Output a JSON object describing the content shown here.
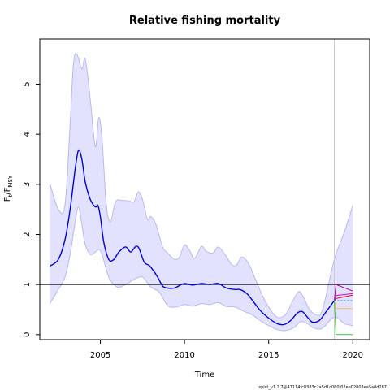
{
  "chart_data": {
    "type": "line",
    "title": "Relative fishing mortality",
    "xlabel": "Time",
    "ylabel": {
      "main": "F",
      "sub_t": "t",
      "slash": "/F",
      "sub_msy": "MSY"
    },
    "xlim": [
      2001.4,
      2021.0
    ],
    "ylim": [
      -0.1,
      5.9
    ],
    "x_ticks": [
      2005,
      2010,
      2015,
      2020
    ],
    "y_ticks": [
      0,
      1,
      2,
      3,
      4,
      5
    ],
    "reference_line": {
      "y": 1.0,
      "color": "#000000"
    },
    "forecast_start": 2018.9,
    "footer": "spict_v1.2.7@47114fc8383c2a5d1c080f02ee02803ea5a0d287",
    "colors": {
      "estimate": "#0000dd",
      "band_fill": "#e2e2ff",
      "band_edge": "#b8b8ee",
      "vline": "#cccccc"
    },
    "series": [
      {
        "name": "",
        "role": "estimate",
        "color": "#0000dd",
        "x": [
          2002.0,
          2002.5,
          2002.9,
          2003.2,
          2003.5,
          2003.7,
          2003.9,
          2004.1,
          2004.4,
          2004.7,
          2004.85,
          2005.0,
          2005.2,
          2005.5,
          2005.8,
          2006.1,
          2006.5,
          2006.8,
          2007.1,
          2007.3,
          2007.6,
          2007.9,
          2008.1,
          2008.4,
          2008.7,
          2009.0,
          2009.4,
          2009.7,
          2010.0,
          2010.5,
          2011.0,
          2011.5,
          2012.0,
          2012.5,
          2013.0,
          2013.3,
          2013.7,
          2014.0,
          2014.5,
          2015.0,
          2015.5,
          2015.9,
          2016.3,
          2016.7,
          2017.0,
          2017.3,
          2017.6,
          2018.0,
          2018.4,
          2018.9
        ],
        "y": [
          1.37,
          1.5,
          1.9,
          2.5,
          3.3,
          3.68,
          3.5,
          3.05,
          2.7,
          2.55,
          2.58,
          2.35,
          1.85,
          1.5,
          1.5,
          1.65,
          1.75,
          1.65,
          1.76,
          1.72,
          1.45,
          1.38,
          1.3,
          1.15,
          0.97,
          0.93,
          0.93,
          0.98,
          1.02,
          0.99,
          1.02,
          1.0,
          1.02,
          0.93,
          0.9,
          0.9,
          0.82,
          0.7,
          0.48,
          0.33,
          0.22,
          0.2,
          0.28,
          0.43,
          0.46,
          0.35,
          0.25,
          0.28,
          0.45,
          0.68
        ]
      },
      {
        "name": "",
        "role": "band_upper",
        "color": "#b8b8ee",
        "x": [
          2002.0,
          2002.5,
          2002.9,
          2003.2,
          2003.4,
          2003.6,
          2003.9,
          2004.1,
          2004.4,
          2004.7,
          2004.9,
          2005.1,
          2005.35,
          2005.6,
          2005.9,
          2006.3,
          2006.7,
          2007.0,
          2007.25,
          2007.5,
          2007.8,
          2008.0,
          2008.3,
          2008.7,
          2009.0,
          2009.4,
          2009.7,
          2010.0,
          2010.3,
          2010.6,
          2011.0,
          2011.3,
          2011.7,
          2012.0,
          2012.4,
          2012.8,
          2013.1,
          2013.4,
          2013.8,
          2014.2,
          2014.6,
          2015.0,
          2015.5,
          2016.0,
          2016.4,
          2016.8,
          2017.1,
          2017.4,
          2017.8,
          2018.2,
          2018.9,
          2019.5,
          2020.0
        ],
        "y": [
          3.02,
          2.5,
          2.6,
          4.2,
          5.4,
          5.6,
          5.3,
          5.5,
          4.7,
          3.75,
          4.33,
          3.9,
          2.6,
          2.25,
          2.65,
          2.68,
          2.67,
          2.65,
          2.85,
          2.7,
          2.3,
          2.36,
          2.2,
          1.75,
          1.63,
          1.5,
          1.55,
          1.79,
          1.68,
          1.52,
          1.76,
          1.66,
          1.63,
          1.75,
          1.6,
          1.4,
          1.39,
          1.55,
          1.42,
          1.12,
          0.8,
          0.55,
          0.35,
          0.4,
          0.65,
          0.86,
          0.72,
          0.52,
          0.4,
          0.5,
          1.5,
          2.05,
          2.58
        ]
      },
      {
        "name": "",
        "role": "band_lower",
        "color": "#b8b8ee",
        "x": [
          2002.0,
          2002.5,
          2002.9,
          2003.2,
          2003.5,
          2003.7,
          2003.9,
          2004.1,
          2004.4,
          2004.7,
          2004.9,
          2005.1,
          2005.5,
          2006.0,
          2006.5,
          2007.0,
          2007.5,
          2008.0,
          2008.5,
          2009.0,
          2009.5,
          2010.0,
          2010.5,
          2011.0,
          2011.5,
          2012.0,
          2012.5,
          2013.0,
          2013.5,
          2014.0,
          2014.5,
          2015.0,
          2015.5,
          2016.0,
          2016.5,
          2016.9,
          2017.3,
          2017.7,
          2018.2,
          2018.9,
          2019.5,
          2020.0
        ],
        "y": [
          0.62,
          0.9,
          1.15,
          1.6,
          2.25,
          2.55,
          2.2,
          1.8,
          1.6,
          1.65,
          1.7,
          1.6,
          1.15,
          0.95,
          1.0,
          1.1,
          1.15,
          0.95,
          0.85,
          0.58,
          0.55,
          0.6,
          0.57,
          0.62,
          0.6,
          0.64,
          0.56,
          0.55,
          0.47,
          0.4,
          0.28,
          0.18,
          0.1,
          0.08,
          0.14,
          0.26,
          0.22,
          0.13,
          0.13,
          0.35,
          0.22,
          0.18
        ]
      },
      {
        "name": "",
        "role": "forecast",
        "color": "#990099",
        "dash": "none",
        "x": [
          2018.9,
          2019.0,
          2020.0
        ],
        "y": [
          0.68,
          1.0,
          0.87
        ]
      },
      {
        "name": "",
        "role": "forecast",
        "color": "#ee0000",
        "dash": "none",
        "x": [
          2018.9,
          2019.0,
          2020.0
        ],
        "y": [
          0.68,
          0.72,
          0.79
        ]
      },
      {
        "name": "",
        "role": "forecast",
        "color": "#dd00dd",
        "dash": "none",
        "x": [
          2018.9,
          2019.0,
          2020.0
        ],
        "y": [
          0.68,
          0.78,
          0.82
        ]
      },
      {
        "name": "",
        "role": "forecast",
        "color": "#00aaff",
        "dash": "2,2",
        "x": [
          2018.9,
          2019.0,
          2020.0
        ],
        "y": [
          0.68,
          0.68,
          0.68
        ]
      },
      {
        "name": "",
        "role": "forecast",
        "color": "#ffbb55",
        "dash": "none",
        "x": [
          2018.9,
          2019.0,
          2020.0
        ],
        "y": [
          0.68,
          0.52,
          0.52
        ]
      },
      {
        "name": "",
        "role": "forecast",
        "color": "#33cc33",
        "dash": "none",
        "x": [
          2018.9,
          2019.0,
          2020.0
        ],
        "y": [
          0.68,
          0.0,
          0.0
        ]
      }
    ],
    "grid": false,
    "legend": "none"
  }
}
